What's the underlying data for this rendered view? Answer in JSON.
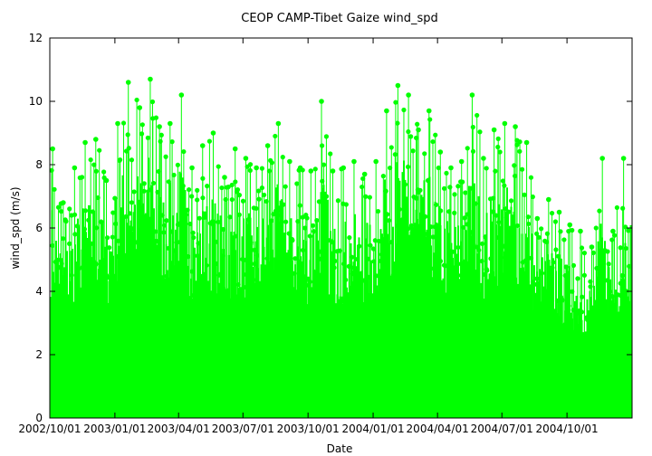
{
  "chart_data": {
    "type": "scatter",
    "title": "CEOP CAMP-Tibet Gaize  wind_spd",
    "xlabel": "Date",
    "ylabel": "wind_spd (m/s)",
    "ylim": [
      0,
      12
    ],
    "xlim": [
      "2002-10-01",
      "2005-01-01"
    ],
    "yticks": [
      "0",
      "2",
      "4",
      "6",
      "8",
      "10",
      "12"
    ],
    "xticks": [
      {
        "date": "2002-10-01",
        "label": "2002/10/01"
      },
      {
        "date": "2003-01-01",
        "label": "2003/01/01"
      },
      {
        "date": "2003-04-01",
        "label": "2003/04/01"
      },
      {
        "date": "2003-07-01",
        "label": "2003/07/01"
      },
      {
        "date": "2003-10-01",
        "label": "2003/10/01"
      },
      {
        "date": "2004-01-01",
        "label": "2004/01/01"
      },
      {
        "date": "2004-04-01",
        "label": "2004/04/01"
      },
      {
        "date": "2004-07-01",
        "label": "2004/07/01"
      },
      {
        "date": "2004-10-01",
        "label": "2004/10/01"
      }
    ],
    "grid": false,
    "color": "#00ff00",
    "series": [
      {
        "x": [
          "2002-10-05",
          "2002-10-20",
          "2002-11-05",
          "2002-11-20",
          "2002-12-05",
          "2002-12-20",
          "2003-01-05",
          "2003-01-20",
          "2003-02-05",
          "2003-02-20",
          "2003-03-05",
          "2003-03-20",
          "2003-04-05",
          "2003-04-20",
          "2003-05-05",
          "2003-05-20",
          "2003-06-05",
          "2003-06-20",
          "2003-07-05",
          "2003-07-20",
          "2003-08-05",
          "2003-08-20",
          "2003-09-05",
          "2003-09-20",
          "2003-10-05",
          "2003-10-20",
          "2003-11-05",
          "2003-11-20",
          "2003-12-05",
          "2003-12-20",
          "2004-01-05",
          "2004-01-20",
          "2004-02-05",
          "2004-02-20",
          "2004-03-05",
          "2004-03-20",
          "2004-04-05",
          "2004-04-20",
          "2004-05-05",
          "2004-05-20",
          "2004-06-05",
          "2004-06-20",
          "2004-07-05",
          "2004-07-20",
          "2004-08-05",
          "2004-08-20",
          "2004-09-05",
          "2004-09-20",
          "2004-10-05",
          "2004-10-20",
          "2004-11-05",
          "2004-11-20",
          "2004-12-05",
          "2004-12-20"
        ],
        "y": [
          8.5,
          6.8,
          7.9,
          8.7,
          8.8,
          7.5,
          9.3,
          10.6,
          9.8,
          10.7,
          9.2,
          9.3,
          10.2,
          7.9,
          8.6,
          9.0,
          7.6,
          8.5,
          8.2,
          7.9,
          8.6,
          9.3,
          8.1,
          7.9,
          7.8,
          10.0,
          7.8,
          7.9,
          8.1,
          7.7,
          8.1,
          9.7,
          10.5,
          10.2,
          9.1,
          9.7,
          8.4,
          7.9,
          8.1,
          10.2,
          8.2,
          9.1,
          9.3,
          9.2,
          8.7,
          6.3,
          6.9,
          6.5,
          6.1,
          5.9,
          5.4,
          8.2,
          5.9,
          8.2
        ]
      }
    ]
  }
}
